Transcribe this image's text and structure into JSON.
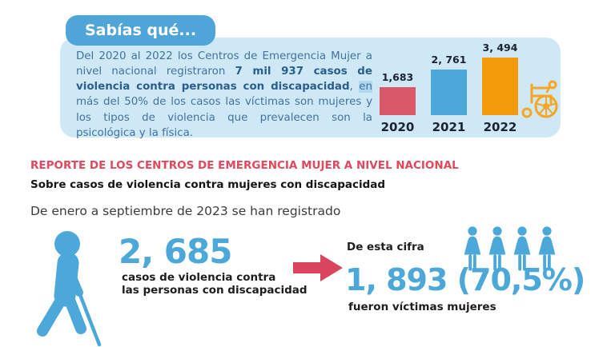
{
  "colors": {
    "panel_bg": "#CFE8F5",
    "badge_bg": "#4FA5D8",
    "accent_blue": "#4BA8D8",
    "accent_red": "#D9455F",
    "heading_red": "#E0485C",
    "paragraph_blue": "#41729F",
    "paragraph_bold_blue": "#2A5E8C",
    "highlight_bg": "#AFD8F0",
    "wheelchair_orange": "#F5A623",
    "text_dark": "#1D1D1D"
  },
  "hero": {
    "badge": "Sabías qué...",
    "paragraph": {
      "segments": [
        {
          "text": "Del 2020 al 2022 los Centros de Emergencia Mujer a nivel nacional registraron ",
          "style": "normal"
        },
        {
          "text": "7 mil 937 casos de violencia contra personas con discapacidad",
          "style": "bold"
        },
        {
          "text": ", ",
          "style": "normal"
        },
        {
          "text": "en",
          "style": "highlight"
        },
        {
          "text": " más del 50% de los casos las víctimas son mujeres y los tipos de violencia que prevalecen son la psicológica y la física.",
          "style": "normal"
        }
      ]
    }
  },
  "chart_data": {
    "type": "bar",
    "categories": [
      "2020",
      "2021",
      "2022"
    ],
    "values": [
      1683,
      2761,
      3494
    ],
    "value_labels": [
      "1,683",
      "2, 761",
      "3, 494"
    ],
    "bar_colors": [
      "#D9596A",
      "#4BA8D8",
      "#F49B0C"
    ],
    "title": "",
    "xlabel": "",
    "ylabel": "",
    "ylim": [
      0,
      3800
    ],
    "grid": false,
    "legend": "none"
  },
  "report": {
    "title": "REPORTE DE LOS CENTROS DE EMERGENCIA MUJER A NIVEL NACIONAL",
    "subtitle": "Sobre casos de violencia contra mujeres con discapacidad",
    "intro": "De enero a septiembre  de 2023 se han registrado"
  },
  "stats": {
    "total": {
      "value": "2, 685",
      "label_line1": "casos de violencia contra",
      "label_line2": "las personas con discapacidad"
    },
    "women": {
      "lead": "De esta cifra",
      "value": "1, 893 (70,5%)",
      "label": "fueron víctimas mujeres"
    }
  },
  "icons": {
    "wheelchair": "wheelchair-icon",
    "person_with_cane": "person-with-cane-icon",
    "arrow_right": "arrow-right-icon",
    "woman": "woman-icon",
    "woman_count": 4
  }
}
